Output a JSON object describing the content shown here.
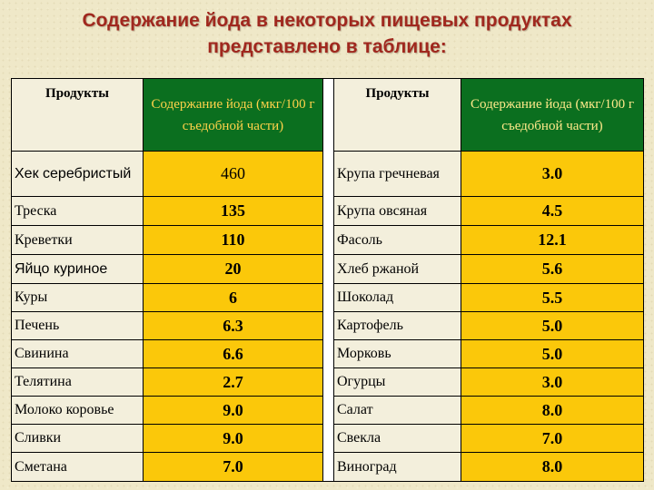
{
  "title_line1": "Содержание йода в некоторых пищевых продуктах",
  "title_line2": "представлено в таблице:",
  "headers": {
    "left_product": "Продукты",
    "left_value": "Содержание йода (мкг/100 г съедобной части)",
    "right_product": "Продукты",
    "right_value": "Содержание йода (мкг/100 г съедобной части)"
  },
  "rows": [
    {
      "left_name": "Хек серебристый",
      "left_value": "460",
      "right_name": "Крупа гречневая",
      "right_value": "3.0"
    },
    {
      "left_name": "Треска",
      "left_value": "135",
      "right_name": "Крупа овсяная",
      "right_value": "4.5"
    },
    {
      "left_name": "Креветки",
      "left_value": "110",
      "right_name": "Фасоль",
      "right_value": "12.1"
    },
    {
      "left_name": "Яйцо куриное",
      "left_value": "20",
      "right_name": "Хлеб ржаной",
      "right_value": "5.6"
    },
    {
      "left_name": "Куры",
      "left_value": "6",
      "right_name": "Шоколад",
      "right_value": "5.5"
    },
    {
      "left_name": "Печень",
      "left_value": "6.3",
      "right_name": "Картофель",
      "right_value": "5.0"
    },
    {
      "left_name": "Свинина",
      "left_value": "6.6",
      "right_name": "Морковь",
      "right_value": "5.0"
    },
    {
      "left_name": "Телятина",
      "left_value": "2.7",
      "right_name": "Огурцы",
      "right_value": "3.0"
    },
    {
      "left_name": "Молоко коровье",
      "left_value": "9.0",
      "right_name": "Салат",
      "right_value": "8.0"
    },
    {
      "left_name": "Сливки",
      "left_value": "9.0",
      "right_name": "Свекла",
      "right_value": "7.0"
    },
    {
      "left_name": "Сметана",
      "left_value": "7.0",
      "right_name": "Виноград",
      "right_value": "8.0"
    }
  ]
}
